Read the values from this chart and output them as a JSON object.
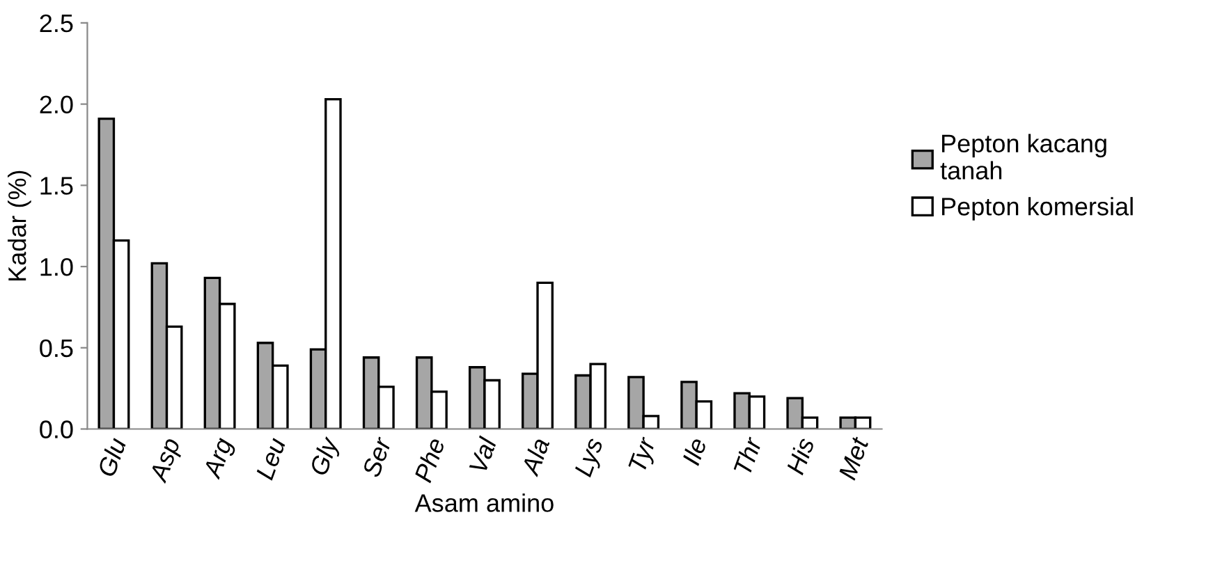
{
  "chart_data": {
    "type": "bar",
    "xlabel": "Asam amino",
    "ylabel": "Kadar (%)",
    "categories": [
      "Glu",
      "Asp",
      "Arg",
      "Leu",
      "Gly",
      "Ser",
      "Phe",
      "Val",
      "Ala",
      "Lys",
      "Tyr",
      "Ile",
      "Thr",
      "His",
      "Met"
    ],
    "series": [
      {
        "name": "Pepton kacang\ntanah",
        "color": "#a6a6a6",
        "values": [
          1.91,
          1.02,
          0.93,
          0.53,
          0.49,
          0.44,
          0.44,
          0.38,
          0.34,
          0.33,
          0.32,
          0.29,
          0.22,
          0.19,
          0.07
        ]
      },
      {
        "name": "Pepton komersial",
        "color": "#ffffff",
        "values": [
          1.16,
          0.63,
          0.77,
          0.39,
          2.03,
          0.26,
          0.23,
          0.3,
          0.9,
          0.4,
          0.08,
          0.17,
          0.2,
          0.07,
          0.07
        ]
      }
    ],
    "ylim": [
      0,
      2.5
    ],
    "yticks": [
      {
        "value": 0,
        "label": "0.0"
      },
      {
        "value": 0.5,
        "label": "0.5"
      },
      {
        "value": 1,
        "label": "1.0"
      },
      {
        "value": 1.5,
        "label": "1.5"
      },
      {
        "value": 2,
        "label": "2.0"
      },
      {
        "value": 2.5,
        "label": "2.5"
      }
    ],
    "grid": false,
    "legend": "right"
  }
}
